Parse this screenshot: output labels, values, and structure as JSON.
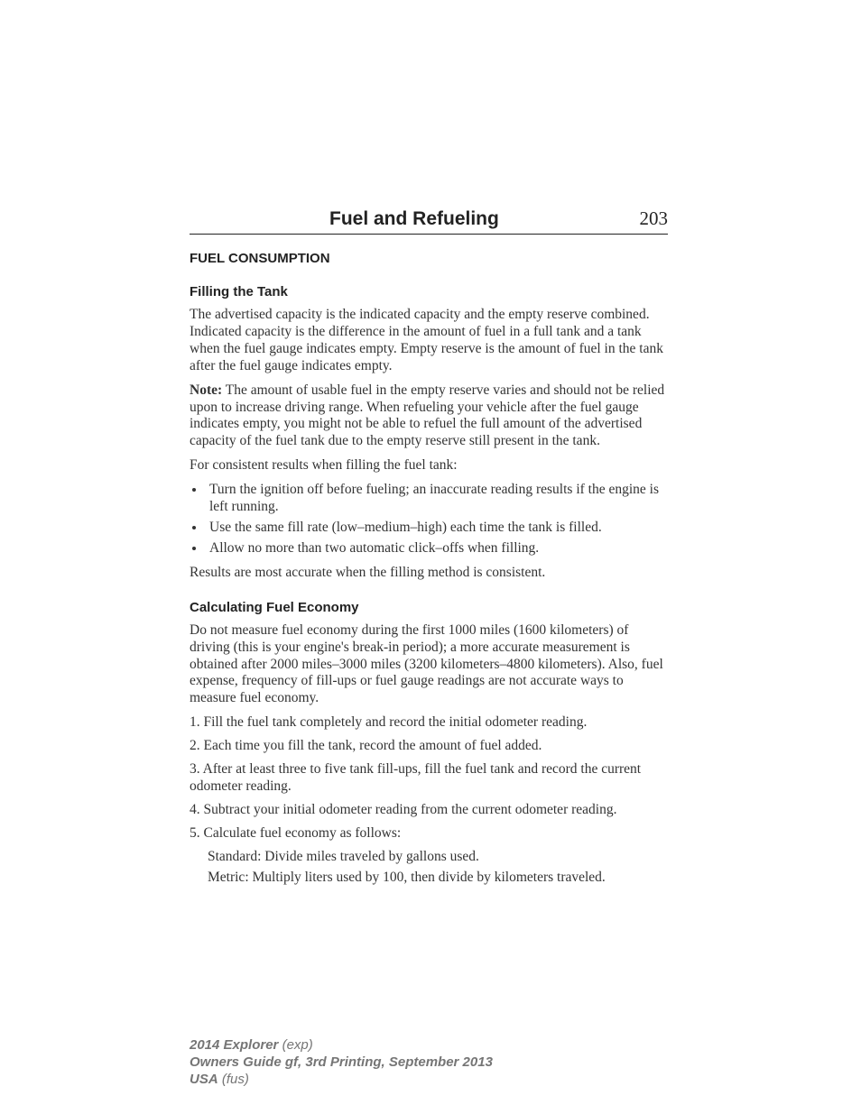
{
  "header": {
    "chapter_title": "Fuel and Refueling",
    "page_number": "203"
  },
  "section": {
    "heading": "FUEL CONSUMPTION",
    "sub1": {
      "heading": "Filling the Tank",
      "p1": "The advertised capacity is the indicated capacity and the empty reserve combined. Indicated capacity is the difference in the amount of fuel in a full tank and a tank when the fuel gauge indicates empty. Empty reserve is the amount of fuel in the tank after the fuel gauge indicates empty.",
      "note_label": "Note:",
      "note_body": " The amount of usable fuel in the empty reserve varies and should not be relied upon to increase driving range. When refueling your vehicle after the fuel gauge indicates empty, you might not be able to refuel the full amount of the advertised capacity of the fuel tank due to the empty reserve still present in the tank.",
      "p3": "For consistent results when filling the fuel tank:",
      "bullets": [
        "Turn the ignition off before fueling; an inaccurate reading results if the engine is left running.",
        "Use the same fill rate (low–medium–high) each time the tank is filled.",
        "Allow no more than two automatic click–offs when filling."
      ],
      "p4": "Results are most accurate when the filling method is consistent."
    },
    "sub2": {
      "heading": "Calculating Fuel Economy",
      "p1": "Do not measure fuel economy during the first 1000 miles (1600 kilometers) of driving (this is your engine's break-in period); a more accurate measurement is obtained after 2000 miles–3000 miles (3200 kilometers–4800 kilometers). Also, fuel expense, frequency of fill-ups or fuel gauge readings are not accurate ways to measure fuel economy.",
      "steps": [
        "1. Fill the fuel tank completely and record the initial odometer reading.",
        "2. Each time you fill the tank, record the amount of fuel added.",
        "3. After at least three to five tank fill-ups, fill the fuel tank and record the current odometer reading.",
        "4. Subtract your initial odometer reading from the current odometer reading.",
        "5. Calculate fuel economy as follows:"
      ],
      "substeps": [
        "Standard: Divide miles traveled by gallons used.",
        "Metric: Multiply liters used by 100, then divide by kilometers traveled."
      ]
    }
  },
  "footer": {
    "line1_bold": "2014 Explorer",
    "line1_rest": " (exp)",
    "line2": "Owners Guide gf, 3rd Printing, September 2013",
    "line3_bold": "USA",
    "line3_rest": " (fus)"
  }
}
